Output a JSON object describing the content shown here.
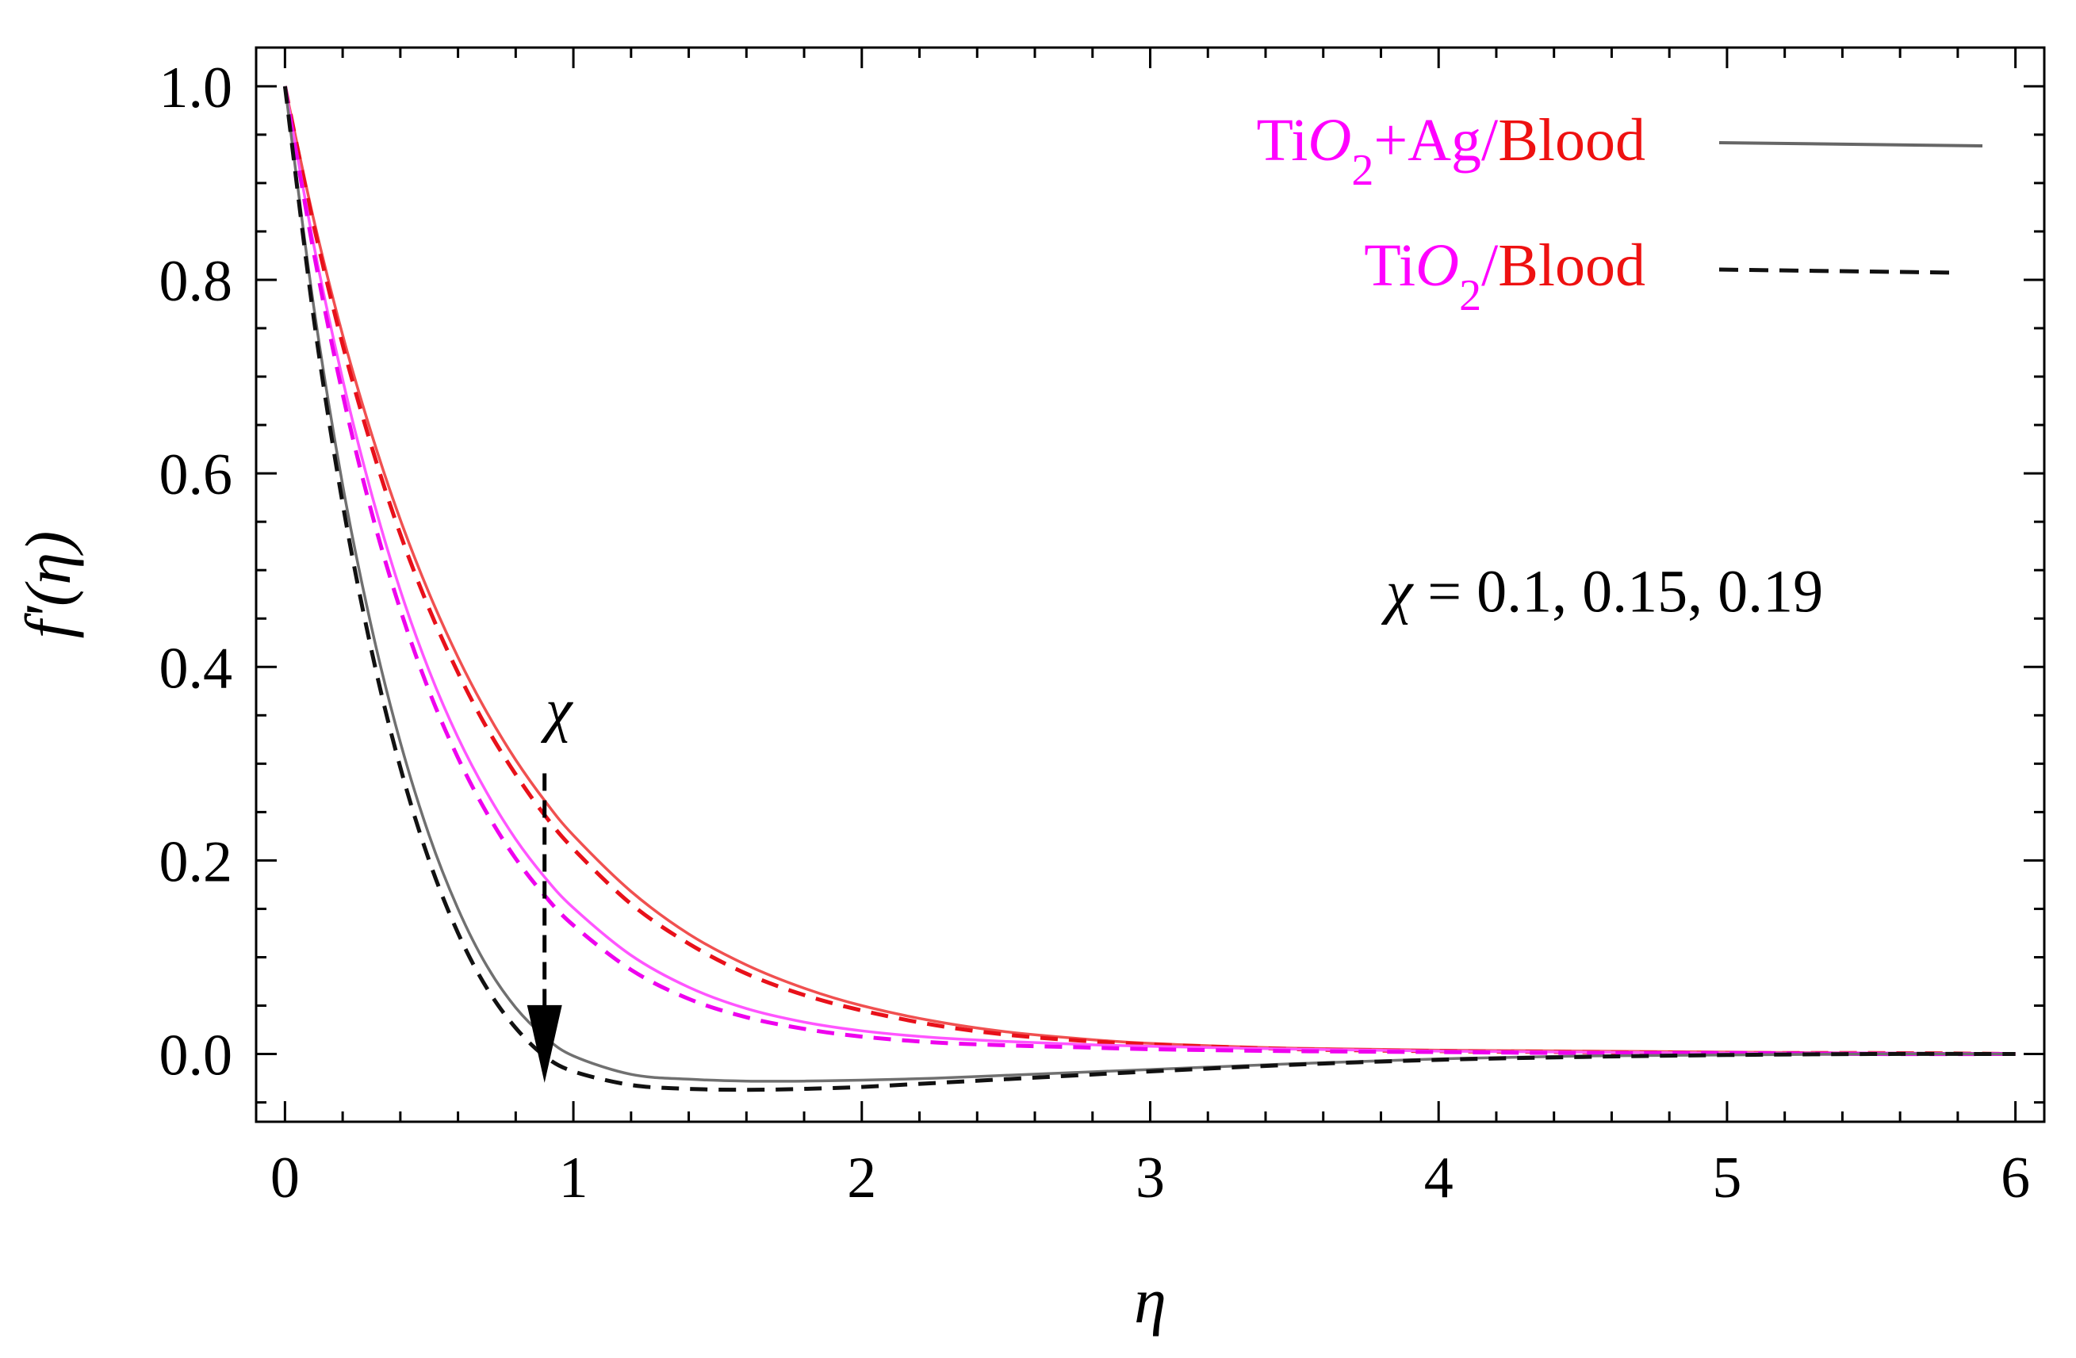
{
  "chart_data": {
    "type": "line",
    "title": "",
    "xlabel": "η",
    "ylabel": "f'(η)",
    "xlim": [
      -0.1,
      6.1
    ],
    "ylim": [
      -0.07,
      1.04
    ],
    "xticks": [
      0,
      1,
      2,
      3,
      4,
      5,
      6
    ],
    "xtick_labels": [
      "0",
      "1",
      "2",
      "3",
      "4",
      "5",
      "6"
    ],
    "yticks": [
      0.0,
      0.2,
      0.4,
      0.6,
      0.8,
      1.0
    ],
    "ytick_labels": [
      "0.0",
      "0.2",
      "0.4",
      "0.6",
      "0.8",
      "1.0"
    ],
    "grid": false,
    "x": [
      0,
      0.1,
      0.2,
      0.3,
      0.4,
      0.5,
      0.6,
      0.7,
      0.8,
      0.9,
      1.0,
      1.2,
      1.4,
      1.6,
      1.8,
      2.0,
      2.25,
      2.5,
      2.75,
      3.0,
      3.5,
      4.0,
      4.5,
      5.0,
      5.5,
      6.0
    ],
    "series": [
      {
        "name": "TiO2+Ag/Blood, χ = 0.1",
        "color": "#f05050",
        "style": "solid",
        "values": [
          1.0,
          0.862,
          0.743,
          0.641,
          0.552,
          0.476,
          0.41,
          0.353,
          0.304,
          0.262,
          0.226,
          0.168,
          0.124,
          0.092,
          0.068,
          0.05,
          0.034,
          0.023,
          0.016,
          0.011,
          0.006,
          0.004,
          0.003,
          0.002,
          0.001,
          0.0
        ]
      },
      {
        "name": "TiO2/Blood, χ = 0.1",
        "color": "#e8101a",
        "style": "dashed",
        "values": [
          1.0,
          0.856,
          0.733,
          0.628,
          0.537,
          0.46,
          0.394,
          0.337,
          0.289,
          0.247,
          0.212,
          0.155,
          0.114,
          0.083,
          0.061,
          0.045,
          0.03,
          0.02,
          0.014,
          0.01,
          0.005,
          0.003,
          0.002,
          0.001,
          0.001,
          0.0
        ]
      },
      {
        "name": "TiO2+Ag/Blood, χ = 0.15",
        "color": "#ff55ff",
        "style": "solid",
        "values": [
          1.0,
          0.836,
          0.697,
          0.579,
          0.479,
          0.396,
          0.327,
          0.27,
          0.222,
          0.183,
          0.151,
          0.102,
          0.069,
          0.047,
          0.033,
          0.024,
          0.017,
          0.013,
          0.01,
          0.008,
          0.005,
          0.003,
          0.002,
          0.001,
          0.001,
          0.0
        ]
      },
      {
        "name": "TiO2/Blood, χ = 0.15",
        "color": "#ee00ee",
        "style": "dashed",
        "values": [
          1.0,
          0.828,
          0.682,
          0.56,
          0.459,
          0.375,
          0.306,
          0.249,
          0.202,
          0.164,
          0.133,
          0.087,
          0.057,
          0.038,
          0.026,
          0.018,
          0.012,
          0.009,
          0.007,
          0.005,
          0.003,
          0.002,
          0.001,
          0.001,
          0.0,
          0.0
        ]
      },
      {
        "name": "TiO2+Ag/Blood, χ = 0.19",
        "color": "#707070",
        "style": "solid",
        "values": [
          1.0,
          0.772,
          0.588,
          0.441,
          0.322,
          0.226,
          0.15,
          0.091,
          0.048,
          0.018,
          -0.002,
          -0.021,
          -0.026,
          -0.028,
          -0.028,
          -0.027,
          -0.025,
          -0.022,
          -0.019,
          -0.016,
          -0.01,
          -0.005,
          -0.002,
          -0.001,
          0.0,
          0.0
        ]
      },
      {
        "name": "TiO2/Blood, χ = 0.19",
        "color": "#111111",
        "style": "dashed",
        "values": [
          1.0,
          0.76,
          0.569,
          0.417,
          0.296,
          0.2,
          0.125,
          0.068,
          0.027,
          -0.002,
          -0.018,
          -0.032,
          -0.036,
          -0.037,
          -0.036,
          -0.034,
          -0.03,
          -0.026,
          -0.022,
          -0.018,
          -0.011,
          -0.006,
          -0.003,
          -0.001,
          0.0,
          0.0
        ]
      }
    ],
    "legend": {
      "placement": "top-right",
      "entries": [
        {
          "parts": [
            {
              "text": "Ti",
              "color": "#ff00ff",
              "italic": false
            },
            {
              "text": "O",
              "color": "#ff00ff",
              "italic": true
            },
            {
              "text": "2",
              "color": "#ff00ff",
              "italic": false,
              "sub": true
            },
            {
              "text": "+Ag/",
              "color": "#ff00ff",
              "italic": false
            },
            {
              "text": "Blood",
              "color": "#ee1111",
              "italic": false
            }
          ],
          "line_style": "solid",
          "line_color": "#666666"
        },
        {
          "parts": [
            {
              "text": "Ti",
              "color": "#ff00ff",
              "italic": false
            },
            {
              "text": "O",
              "color": "#ff00ff",
              "italic": true
            },
            {
              "text": "2",
              "color": "#ff00ff",
              "italic": false,
              "sub": true
            },
            {
              "text": "/",
              "color": "#ff00ff",
              "italic": false
            },
            {
              "text": "Blood",
              "color": "#ee1111",
              "italic": false
            }
          ],
          "line_style": "dashed",
          "line_color": "#111111"
        }
      ]
    },
    "annotations": {
      "chi_label": "χ",
      "chi_values_symbol": "χ",
      "chi_values_text": " = 0.1, 0.15, 0.19",
      "arrow": {
        "x": 0.9,
        "y_from": 0.29,
        "y_to": -0.015,
        "direction": "down"
      }
    }
  }
}
